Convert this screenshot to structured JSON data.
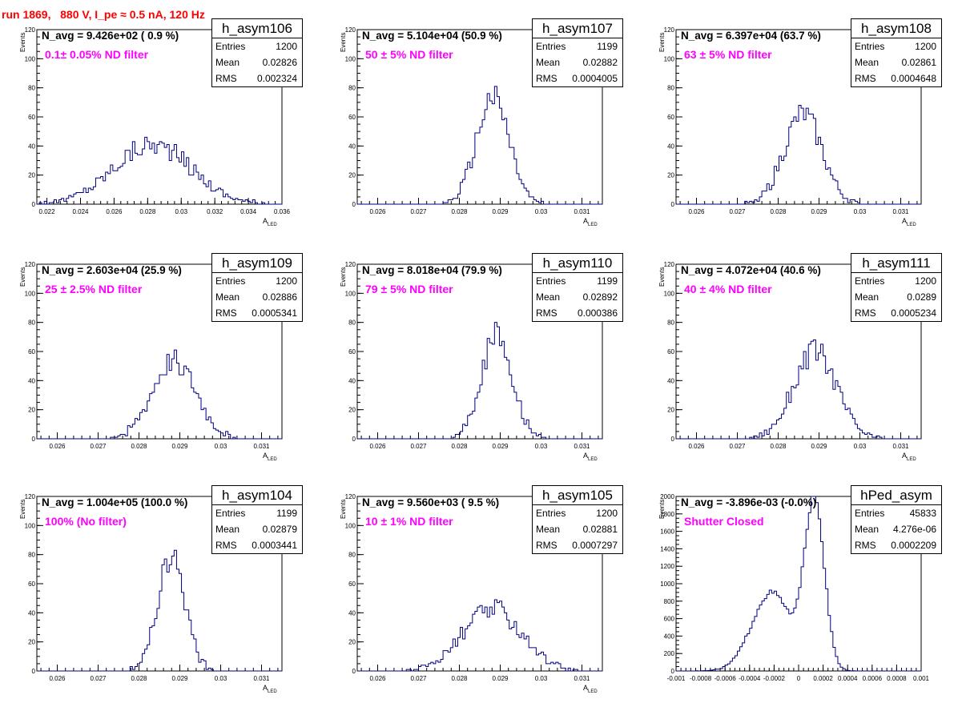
{
  "header": {
    "title": "run 1869,   880 V, I_pe ≈ 0.5 nA, 120 Hz"
  },
  "colors": {
    "histogram": "#000080",
    "title": "#ff0000",
    "filter_text": "#ff00ff"
  },
  "chart_data": [
    {
      "type": "bar",
      "name": "h_asym106",
      "navg": "N_avg = 9.426e+02 ( 0.9 %)",
      "filter_label": "0.1± 0.05% ND filter",
      "stats": {
        "entries": "1200",
        "mean": "0.02826",
        "rms": "0.002324"
      },
      "stat_labels": {
        "entries": "Entries",
        "mean": "Mean",
        "rms": "RMS"
      },
      "ylabel": "Events",
      "xlabel": "A",
      "xlabel_sub": "LED",
      "xlim": [
        0.0214,
        0.036
      ],
      "ylim": [
        0,
        120
      ],
      "xticks": [
        "0.022",
        "0.024",
        "0.026",
        "0.028",
        "0.03",
        "0.032",
        "0.034",
        "0.036"
      ],
      "xtick_values": [
        0.022,
        0.024,
        0.026,
        0.028,
        0.03,
        0.032,
        0.034,
        0.036
      ],
      "yticks": [
        "0",
        "20",
        "40",
        "60",
        "80",
        "100",
        "120"
      ],
      "ytick_values": [
        0,
        20,
        40,
        60,
        80,
        100,
        120
      ],
      "mean": 0.02826,
      "rms": 0.002324,
      "peak": 45
    },
    {
      "type": "bar",
      "name": "h_asym107",
      "navg": "N_avg = 5.104e+04 (50.9 %)",
      "filter_label": "50 ± 5% ND filter",
      "stats": {
        "entries": "1199",
        "mean": "0.02882",
        "rms": "0.0004005"
      },
      "stat_labels": {
        "entries": "Entries",
        "mean": "Mean",
        "rms": "RMS"
      },
      "ylabel": "Events",
      "xlabel": "A",
      "xlabel_sub": "LED",
      "xlim": [
        0.0255,
        0.0315
      ],
      "ylim": [
        0,
        120
      ],
      "xticks": [
        "0.026",
        "0.027",
        "0.028",
        "0.029",
        "0.03",
        "0.031"
      ],
      "xtick_values": [
        0.026,
        0.027,
        0.028,
        0.029,
        0.03,
        0.031
      ],
      "yticks": [
        "0",
        "20",
        "40",
        "60",
        "80",
        "100",
        "120"
      ],
      "ytick_values": [
        0,
        20,
        40,
        60,
        80,
        100,
        120
      ],
      "mean": 0.02882,
      "rms": 0.0004005,
      "peak": 80
    },
    {
      "type": "bar",
      "name": "h_asym108",
      "navg": "N_avg = 6.397e+04 (63.7 %)",
      "filter_label": "63 ± 5% ND filter",
      "stats": {
        "entries": "1200",
        "mean": "0.02861",
        "rms": "0.0004648"
      },
      "stat_labels": {
        "entries": "Entries",
        "mean": "Mean",
        "rms": "RMS"
      },
      "ylabel": "Events",
      "xlabel": "A",
      "xlabel_sub": "LED",
      "xlim": [
        0.0255,
        0.0315
      ],
      "ylim": [
        0,
        120
      ],
      "xticks": [
        "0.026",
        "0.027",
        "0.028",
        "0.029",
        "0.03",
        "0.031"
      ],
      "xtick_values": [
        0.026,
        0.027,
        0.028,
        0.029,
        0.03,
        0.031
      ],
      "yticks": [
        "0",
        "20",
        "40",
        "60",
        "80",
        "100",
        "120"
      ],
      "ytick_values": [
        0,
        20,
        40,
        60,
        80,
        100,
        120
      ],
      "mean": 0.02861,
      "rms": 0.0004648,
      "peak": 67
    },
    {
      "type": "bar",
      "name": "h_asym109",
      "navg": "N_avg = 2.603e+04 (25.9 %)",
      "filter_label": "25 ± 2.5% ND filter",
      "stats": {
        "entries": "1200",
        "mean": "0.02886",
        "rms": "0.0005341"
      },
      "stat_labels": {
        "entries": "Entries",
        "mean": "Mean",
        "rms": "RMS"
      },
      "ylabel": "Events",
      "xlabel": "A",
      "xlabel_sub": "LED",
      "xlim": [
        0.0255,
        0.0315
      ],
      "ylim": [
        0,
        120
      ],
      "xticks": [
        "0.026",
        "0.027",
        "0.028",
        "0.029",
        "0.03",
        "0.031"
      ],
      "xtick_values": [
        0.026,
        0.027,
        0.028,
        0.029,
        0.03,
        0.031
      ],
      "yticks": [
        "0",
        "20",
        "40",
        "60",
        "80",
        "100",
        "120"
      ],
      "ytick_values": [
        0,
        20,
        40,
        60,
        80,
        100,
        120
      ],
      "mean": 0.02886,
      "rms": 0.0005341,
      "peak": 58
    },
    {
      "type": "bar",
      "name": "h_asym110",
      "navg": "N_avg = 8.018e+04 (79.9 %)",
      "filter_label": "79 ± 5% ND filter",
      "stats": {
        "entries": "1199",
        "mean": "0.02892",
        "rms": "0.000386"
      },
      "stat_labels": {
        "entries": "Entries",
        "mean": "Mean",
        "rms": "RMS"
      },
      "ylabel": "Events",
      "xlabel": "A",
      "xlabel_sub": "LED",
      "xlim": [
        0.0255,
        0.0315
      ],
      "ylim": [
        0,
        120
      ],
      "xticks": [
        "0.026",
        "0.027",
        "0.028",
        "0.029",
        "0.03",
        "0.031"
      ],
      "xtick_values": [
        0.026,
        0.027,
        0.028,
        0.029,
        0.03,
        0.031
      ],
      "yticks": [
        "0",
        "20",
        "40",
        "60",
        "80",
        "100",
        "120"
      ],
      "ytick_values": [
        0,
        20,
        40,
        60,
        80,
        100,
        120
      ],
      "mean": 0.02892,
      "rms": 0.000386,
      "peak": 77
    },
    {
      "type": "bar",
      "name": "h_asym111",
      "navg": "N_avg = 4.072e+04 (40.6 %)",
      "filter_label": "40 ± 4% ND filter",
      "stats": {
        "entries": "1200",
        "mean": "0.0289",
        "rms": "0.0005234"
      },
      "stat_labels": {
        "entries": "Entries",
        "mean": "Mean",
        "rms": "RMS"
      },
      "ylabel": "Events",
      "xlabel": "A",
      "xlabel_sub": "LED",
      "xlim": [
        0.0255,
        0.0315
      ],
      "ylim": [
        0,
        120
      ],
      "xticks": [
        "0.026",
        "0.027",
        "0.028",
        "0.029",
        "0.03",
        "0.031"
      ],
      "xtick_values": [
        0.026,
        0.027,
        0.028,
        0.029,
        0.03,
        0.031
      ],
      "yticks": [
        "0",
        "20",
        "40",
        "60",
        "80",
        "100",
        "120"
      ],
      "ytick_values": [
        0,
        20,
        40,
        60,
        80,
        100,
        120
      ],
      "mean": 0.0289,
      "rms": 0.0005234,
      "peak": 65
    },
    {
      "type": "bar",
      "name": "h_asym104",
      "navg": "N_avg = 1.004e+05 (100.0 %)",
      "filter_label": "100% (No filter)",
      "stats": {
        "entries": "1199",
        "mean": "0.02879",
        "rms": "0.0003441"
      },
      "stat_labels": {
        "entries": "Entries",
        "mean": "Mean",
        "rms": "RMS"
      },
      "ylabel": "Events",
      "xlabel": "A",
      "xlabel_sub": "LED",
      "xlim": [
        0.0255,
        0.0315
      ],
      "ylim": [
        0,
        120
      ],
      "xticks": [
        "0.026",
        "0.027",
        "0.028",
        "0.029",
        "0.03",
        "0.031"
      ],
      "xtick_values": [
        0.026,
        0.027,
        0.028,
        0.029,
        0.03,
        0.031
      ],
      "yticks": [
        "0",
        "20",
        "40",
        "60",
        "80",
        "100",
        "120"
      ],
      "ytick_values": [
        0,
        20,
        40,
        60,
        80,
        100,
        120
      ],
      "mean": 0.02879,
      "rms": 0.0003441,
      "peak": 84
    },
    {
      "type": "bar",
      "name": "h_asym105",
      "navg": "N_avg = 9.560e+03 ( 9.5 %)",
      "filter_label": "10 ± 1% ND filter",
      "stats": {
        "entries": "1200",
        "mean": "0.02881",
        "rms": "0.0007297"
      },
      "stat_labels": {
        "entries": "Entries",
        "mean": "Mean",
        "rms": "RMS"
      },
      "ylabel": "Events",
      "xlabel": "A",
      "xlabel_sub": "LED",
      "xlim": [
        0.0255,
        0.0315
      ],
      "ylim": [
        0,
        120
      ],
      "xticks": [
        "0.026",
        "0.027",
        "0.028",
        "0.029",
        "0.03",
        "0.031"
      ],
      "xtick_values": [
        0.026,
        0.027,
        0.028,
        0.029,
        0.03,
        0.031
      ],
      "yticks": [
        "0",
        "20",
        "40",
        "60",
        "80",
        "100",
        "120"
      ],
      "ytick_values": [
        0,
        20,
        40,
        60,
        80,
        100,
        120
      ],
      "mean": 0.02881,
      "rms": 0.0007297,
      "peak": 46
    },
    {
      "type": "bar",
      "name": "hPed_asym",
      "navg": "N_avg = -3.896e-03 (-0.0%)",
      "filter_label": "Shutter Closed",
      "stats": {
        "entries": "45833",
        "mean": "4.276e-06",
        "rms": "0.0002209"
      },
      "stat_labels": {
        "entries": "Entries",
        "mean": "Mean",
        "rms": "RMS"
      },
      "ylabel": "Events",
      "xlabel": "",
      "xlabel_sub": "",
      "xlim": [
        -0.001,
        0.001
      ],
      "ylim": [
        0,
        2000
      ],
      "xticks": [
        "-0.001",
        "-0.0008",
        "-0.0006",
        "-0.0004",
        "-0.0002",
        "0",
        "0.0002",
        "0.0004",
        "0.0006",
        "0.0008",
        "0.001"
      ],
      "xtick_values": [
        -0.001,
        -0.0008,
        -0.0006,
        -0.0004,
        -0.0002,
        0,
        0.0002,
        0.0004,
        0.0006,
        0.0008,
        0.001
      ],
      "yticks": [
        "0",
        "200",
        "400",
        "600",
        "800",
        "1000",
        "1200",
        "1400",
        "1600",
        "1800",
        "2000"
      ],
      "ytick_values": [
        0,
        200,
        400,
        600,
        800,
        1000,
        1200,
        1400,
        1600,
        1800,
        2000
      ],
      "mean": 4.276e-06,
      "rms": 0.0002209,
      "peak": 1970,
      "shape": "double_peak",
      "components": [
        {
          "center": 0.00013,
          "width": 8e-05,
          "height": 1950
        },
        {
          "center": -0.00022,
          "width": 0.00016,
          "height": 900
        }
      ]
    }
  ]
}
